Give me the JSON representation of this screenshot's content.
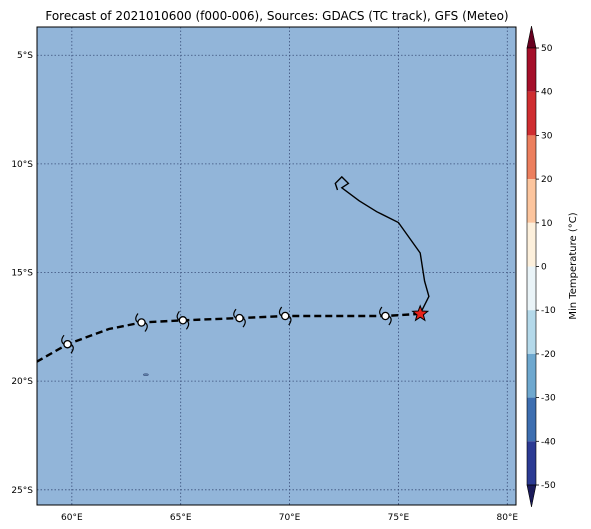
{
  "title": "Forecast of 2021010600 (f000-006), Sources: GDACS (TC track), GFS (Meteo)",
  "map": {
    "lon_range": [
      58.4,
      80.4
    ],
    "lat_range": [
      -25.7,
      -3.7
    ],
    "ocean_color": "#92b5d9",
    "grid": "on",
    "lon_ticks": [
      {
        "value": 60,
        "label": "60°E"
      },
      {
        "value": 65,
        "label": "65°E"
      },
      {
        "value": 70,
        "label": "70°E"
      },
      {
        "value": 75,
        "label": "75°E"
      },
      {
        "value": 80,
        "label": "80°E"
      }
    ],
    "lat_ticks": [
      {
        "value": -5,
        "label": "5°S"
      },
      {
        "value": -10,
        "label": "10°S"
      },
      {
        "value": -15,
        "label": "15°S"
      },
      {
        "value": -20,
        "label": "20°S"
      },
      {
        "value": -25,
        "label": "25°S"
      }
    ]
  },
  "past_track": [
    [
      76.0,
      -16.9
    ],
    [
      76.4,
      -16.1
    ],
    [
      76.2,
      -15.4
    ],
    [
      76.0,
      -14.1
    ],
    [
      75.0,
      -12.7
    ],
    [
      74.0,
      -12.2
    ],
    [
      73.2,
      -11.7
    ],
    [
      72.4,
      -11.1
    ],
    [
      72.7,
      -10.9
    ],
    [
      72.4,
      -10.6
    ],
    [
      72.1,
      -10.9
    ],
    [
      72.2,
      -11.2
    ]
  ],
  "forecast_track": [
    [
      76.0,
      -16.9
    ],
    [
      74.4,
      -17.0
    ],
    [
      69.8,
      -17.0
    ],
    [
      67.7,
      -17.1
    ],
    [
      65.1,
      -17.2
    ],
    [
      63.2,
      -17.3
    ],
    [
      61.7,
      -17.6
    ],
    [
      59.8,
      -18.3
    ],
    [
      58.4,
      -19.1
    ]
  ],
  "storm_symbols": [
    {
      "lon": 74.4,
      "lat": -17.0
    },
    {
      "lon": 69.8,
      "lat": -17.0
    },
    {
      "lon": 67.7,
      "lat": -17.1
    },
    {
      "lon": 65.1,
      "lat": -17.2
    },
    {
      "lon": 63.2,
      "lat": -17.3
    },
    {
      "lon": 59.8,
      "lat": -18.3
    }
  ],
  "current_position": {
    "lon": 76.0,
    "lat": -16.9,
    "color": "#e8231b"
  },
  "island": {
    "lon": 63.4,
    "lat": -19.7
  },
  "colorbar": {
    "label": "Min Temperature (°C)",
    "min": -55,
    "max": 55,
    "ticks": [
      50,
      40,
      30,
      20,
      10,
      0,
      -10,
      -20,
      -30,
      -40,
      -50
    ],
    "bands": [
      {
        "from": 50,
        "to": 55,
        "color": "#67001f"
      },
      {
        "from": 40,
        "to": 50,
        "color": "#a50f2a"
      },
      {
        "from": 30,
        "to": 40,
        "color": "#cf2e31"
      },
      {
        "from": 20,
        "to": 30,
        "color": "#ec7f5e"
      },
      {
        "from": 10,
        "to": 20,
        "color": "#fcc59e"
      },
      {
        "from": 0,
        "to": 10,
        "color": "#fdf0dc"
      },
      {
        "from": -10,
        "to": 0,
        "color": "#eaf4f8"
      },
      {
        "from": -20,
        "to": -10,
        "color": "#b4d9ea"
      },
      {
        "from": -30,
        "to": -20,
        "color": "#6ea8cf"
      },
      {
        "from": -40,
        "to": -30,
        "color": "#3d6eb0"
      },
      {
        "from": -50,
        "to": -40,
        "color": "#2b3a93"
      },
      {
        "from": -55,
        "to": -50,
        "color": "#1a1a5a"
      }
    ]
  }
}
